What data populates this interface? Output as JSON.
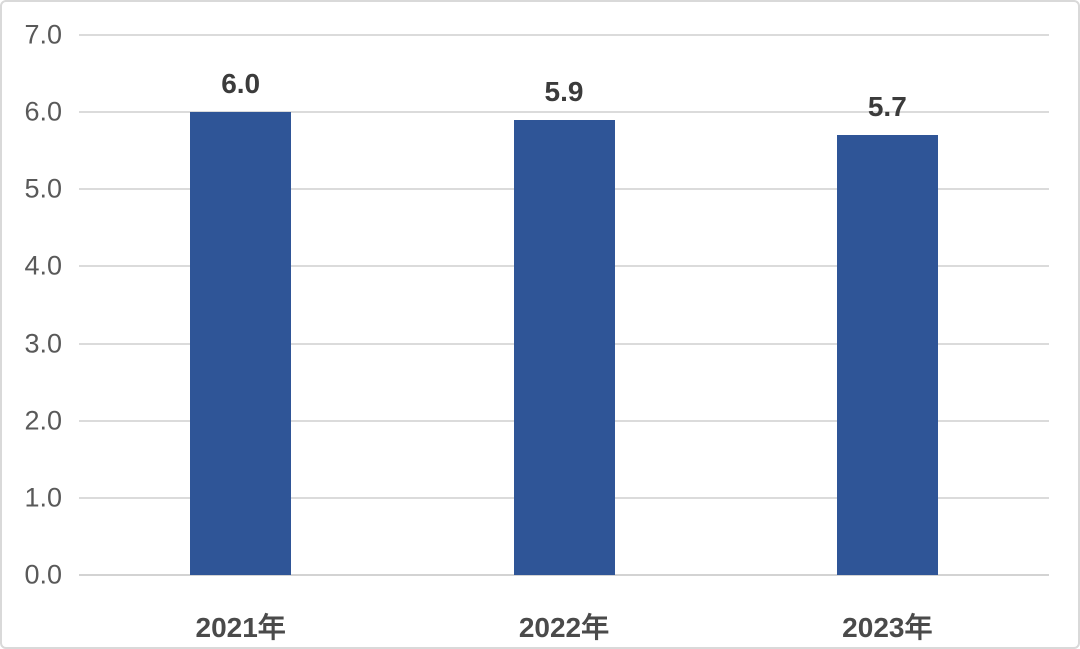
{
  "chart_data": {
    "type": "bar",
    "title": "",
    "xlabel": "",
    "ylabel": "",
    "categories": [
      "2021年",
      "2022年",
      "2023年"
    ],
    "values": [
      6.0,
      5.9,
      5.7
    ],
    "data_labels": [
      "6.0",
      "5.9",
      "5.7"
    ],
    "yticks": [
      "0.0",
      "1.0",
      "2.0",
      "3.0",
      "4.0",
      "5.0",
      "6.0",
      "7.0"
    ],
    "ylim": [
      0,
      7
    ],
    "grid": "horizontal",
    "legend": "none",
    "colors": {
      "bar": "#2f5597",
      "gridline": "#dbdbdb",
      "axis_line": "#d3d3d3",
      "ytick_text": "#595959",
      "data_label_text": "#3b3b3b",
      "category_text": "#4a4a4a",
      "background": "#ffffff",
      "border": "#d9d9d9"
    }
  }
}
